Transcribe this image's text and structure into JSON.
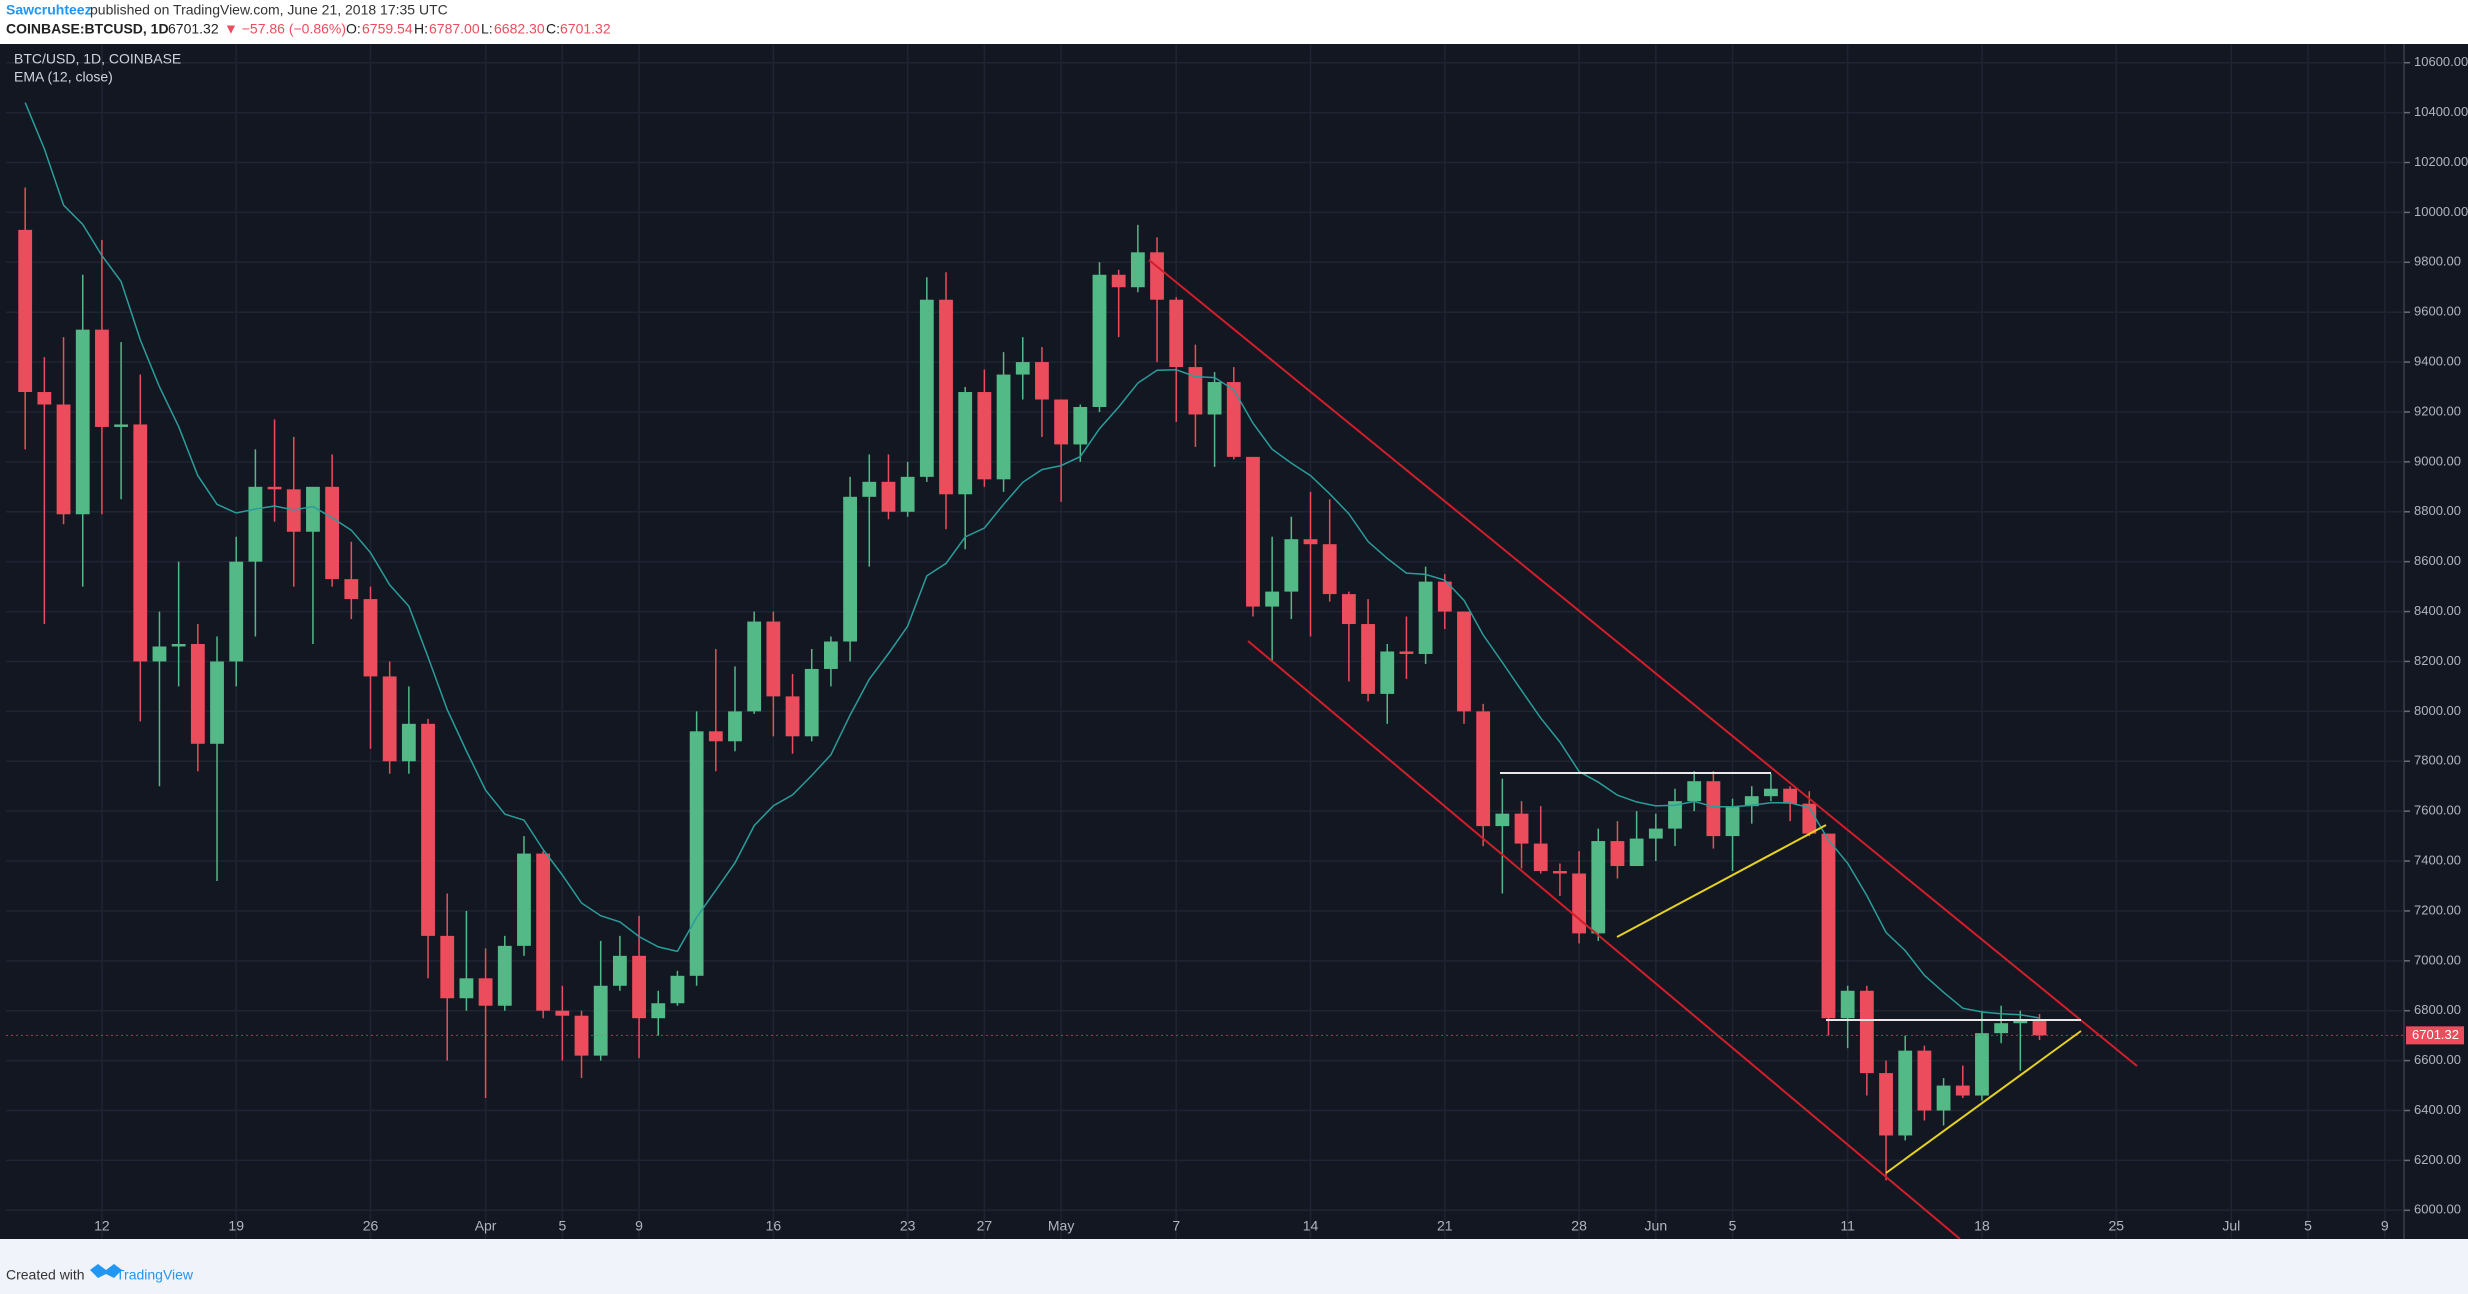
{
  "header": {
    "user": "Sawcruhteez",
    "published": "published on TradingView.com, June 21, 2018 17:35 UTC",
    "symbol": "COINBASE:BTCUSD, 1D",
    "last": "6701.32",
    "change": "▼ −57.86 (−0.86%)",
    "o_label": "O:",
    "o": "6759.54",
    "h_label": "H:",
    "h": "6787.00",
    "l_label": "L:",
    "l": "6682.30",
    "c_label": "C:",
    "c": "6701.32"
  },
  "footer": {
    "created": "Created with",
    "brand": "TradingView"
  },
  "chart_data": {
    "type": "candlestick",
    "title": "BTC/USD, 1D, COINBASE",
    "up_color": "#53b987",
    "down_color": "#eb4d5c",
    "x": [
      "03-08",
      "03-09",
      "03-10",
      "03-11",
      "03-12",
      "03-13",
      "03-14",
      "03-15",
      "03-16",
      "03-17",
      "03-18",
      "03-19",
      "03-20",
      "03-21",
      "03-22",
      "03-23",
      "03-24",
      "03-25",
      "03-26",
      "03-27",
      "03-28",
      "03-29",
      "03-30",
      "03-31",
      "04-01",
      "04-02",
      "04-03",
      "04-04",
      "04-05",
      "04-06",
      "04-07",
      "04-08",
      "04-09",
      "04-10",
      "04-11",
      "04-12",
      "04-13",
      "04-14",
      "04-15",
      "04-16",
      "04-17",
      "04-18",
      "04-19",
      "04-20",
      "04-21",
      "04-22",
      "04-23",
      "04-24",
      "04-25",
      "04-26",
      "04-27",
      "04-28",
      "04-29",
      "04-30",
      "05-01",
      "05-02",
      "05-03",
      "05-04",
      "05-05",
      "05-06",
      "05-07",
      "05-08",
      "05-09",
      "05-10",
      "05-11",
      "05-12",
      "05-13",
      "05-14",
      "05-15",
      "05-16",
      "05-17",
      "05-18",
      "05-19",
      "05-20",
      "05-21",
      "05-22",
      "05-23",
      "05-24",
      "05-25",
      "05-26",
      "05-27",
      "05-28",
      "05-29",
      "05-30",
      "05-31",
      "06-01",
      "06-02",
      "06-03",
      "06-04",
      "06-05",
      "06-06",
      "06-07",
      "06-08",
      "06-09",
      "06-10",
      "06-11",
      "06-12",
      "06-13",
      "06-14",
      "06-15",
      "06-16",
      "06-17",
      "06-18",
      "06-19",
      "06-20",
      "06-21"
    ],
    "open": [
      9930,
      9280,
      9230,
      8790,
      9530,
      9140,
      9150,
      8200,
      8260,
      8270,
      7870,
      8200,
      8600,
      8900,
      8890,
      8720,
      8900,
      8530,
      8450,
      8140,
      7800,
      7950,
      7100,
      6850,
      6930,
      6820,
      7060,
      7430,
      6800,
      6780,
      6620,
      6900,
      7020,
      6770,
      6830,
      6940,
      7920,
      7880,
      8000,
      8360,
      8060,
      7900,
      8170,
      8280,
      8860,
      8920,
      8800,
      8940,
      9650,
      8870,
      9280,
      8930,
      9350,
      9400,
      9250,
      9070,
      9220,
      9750,
      9700,
      9840,
      9650,
      9380,
      9190,
      9320,
      9020,
      8420,
      8480,
      8690,
      8670,
      8470,
      8350,
      8070,
      8240,
      8230,
      8520,
      8400,
      8000,
      7540,
      7590,
      7470,
      7360,
      7350,
      7110,
      7480,
      7380,
      7490,
      7530,
      7640,
      7720,
      7500,
      7620,
      7660,
      7690,
      7630,
      7510,
      6770,
      6880,
      6550,
      6300,
      6640,
      6400,
      6500,
      6460,
      6710,
      6750,
      6759.54
    ],
    "high": [
      10100,
      9420,
      9500,
      9750,
      9890,
      9480,
      9350,
      8400,
      8600,
      8350,
      8300,
      8700,
      9050,
      9170,
      9100,
      8900,
      9030,
      8680,
      8500,
      8200,
      8100,
      7970,
      7270,
      7200,
      7050,
      7100,
      7500,
      7440,
      6900,
      6800,
      7080,
      7100,
      7180,
      6880,
      6960,
      8000,
      8250,
      8180,
      8400,
      8400,
      8150,
      8250,
      8300,
      8940,
      9030,
      9030,
      9000,
      9740,
      9760,
      9300,
      9370,
      9440,
      9500,
      9460,
      9250,
      9230,
      9800,
      9770,
      9950,
      9900,
      9660,
      9470,
      9360,
      9380,
      9020,
      8700,
      8780,
      8880,
      8850,
      8480,
      8450,
      8270,
      8380,
      8580,
      8550,
      8400,
      8030,
      7730,
      7640,
      7620,
      7390,
      7440,
      7530,
      7560,
      7600,
      7590,
      7690,
      7760,
      7760,
      7650,
      7700,
      7750,
      7700,
      7680,
      7510,
      6900,
      6900,
      6600,
      6700,
      6660,
      6530,
      6580,
      6800,
      6820,
      6800,
      6787
    ],
    "low": [
      9050,
      8350,
      8750,
      8500,
      8790,
      8850,
      7960,
      7700,
      8100,
      7760,
      7320,
      8100,
      8300,
      8760,
      8500,
      8270,
      8500,
      8370,
      7850,
      7750,
      7750,
      6930,
      6600,
      6800,
      6450,
      6800,
      7020,
      6770,
      6600,
      6530,
      6600,
      6880,
      6610,
      6700,
      6820,
      6900,
      7760,
      7840,
      7990,
      7900,
      7830,
      7880,
      8100,
      8200,
      8580,
      8770,
      8780,
      8920,
      8730,
      8650,
      8900,
      8880,
      9250,
      9100,
      8840,
      9000,
      9200,
      9500,
      9680,
      9400,
      9160,
      9060,
      8980,
      9010,
      8380,
      8200,
      8370,
      8300,
      8440,
      8120,
      8040,
      7950,
      8130,
      8190,
      8330,
      7950,
      7460,
      7270,
      7370,
      7350,
      7260,
      7070,
      7080,
      7330,
      7380,
      7400,
      7460,
      7600,
      7450,
      7360,
      7550,
      7640,
      7560,
      7500,
      6700,
      6650,
      6460,
      6120,
      6280,
      6360,
      6340,
      6450,
      6440,
      6670,
      6560,
      6682.3
    ],
    "close": [
      9280,
      9230,
      8790,
      9530,
      9140,
      9150,
      8200,
      8260,
      8270,
      7870,
      8200,
      8600,
      8900,
      8890,
      8720,
      8900,
      8530,
      8450,
      8140,
      7800,
      7950,
      7100,
      6850,
      6930,
      6820,
      7060,
      7430,
      6800,
      6780,
      6620,
      6900,
      7020,
      6770,
      6830,
      6940,
      7920,
      7880,
      8000,
      8360,
      8060,
      7900,
      8170,
      8280,
      8860,
      8920,
      8800,
      8940,
      9650,
      8870,
      9280,
      8930,
      9350,
      9400,
      9250,
      9070,
      9220,
      9750,
      9700,
      9840,
      9650,
      9380,
      9190,
      9320,
      9020,
      8420,
      8480,
      8690,
      8670,
      8470,
      8350,
      8070,
      8240,
      8230,
      8520,
      8400,
      8000,
      7540,
      7590,
      7470,
      7360,
      7350,
      7110,
      7480,
      7380,
      7490,
      7530,
      7640,
      7720,
      7500,
      7620,
      7660,
      7690,
      7630,
      7510,
      6770,
      6880,
      6550,
      6300,
      6640,
      6400,
      6500,
      6460,
      6710,
      6750,
      6760,
      6701.32
    ],
    "series": [
      {
        "name": "EMA (12, close)",
        "color": "#2a9d9a",
        "values": [
          10440,
          10254,
          10029,
          9952,
          9827,
          9723,
          9489,
          9300,
          9141,
          8945,
          8830,
          8795,
          8811,
          8823,
          8807,
          8821,
          8776,
          8726,
          8636,
          8507,
          8421,
          8218,
          8007,
          7841,
          7684,
          7588,
          7564,
          7446,
          7344,
          7232,
          7181,
          7156,
          7097,
          7056,
          7038,
          7174,
          7283,
          7393,
          7542,
          7622,
          7665,
          7743,
          7826,
          7985,
          8129,
          8232,
          8341,
          8543,
          8593,
          8699,
          8735,
          8830,
          8918,
          8969,
          8985,
          9021,
          9133,
          9220,
          9316,
          9367,
          9369,
          9342,
          9338,
          9289,
          9155,
          9051,
          8995,
          8945,
          8872,
          8792,
          8681,
          8613,
          8554,
          8549,
          8526,
          8445,
          8306,
          8196,
          8084,
          7973,
          7877,
          7759,
          7716,
          7664,
          7637,
          7621,
          7624,
          7639,
          7618,
          7618,
          7624,
          7634,
          7633,
          7614,
          7484,
          7391,
          7262,
          7114,
          7041,
          6942,
          6874,
          6810,
          6795,
          6788,
          6784,
          6771
        ]
      }
    ],
    "xlim": [
      "03-07",
      "07-10"
    ],
    "xticks": [
      {
        "value": "03-12",
        "label": "12"
      },
      {
        "value": "03-19",
        "label": "19"
      },
      {
        "value": "03-26",
        "label": "26"
      },
      {
        "value": "04-01",
        "label": "Apr"
      },
      {
        "value": "04-05",
        "label": "5"
      },
      {
        "value": "04-09",
        "label": "9"
      },
      {
        "value": "04-16",
        "label": "16"
      },
      {
        "value": "04-23",
        "label": "23"
      },
      {
        "value": "04-27",
        "label": "27"
      },
      {
        "value": "05-01",
        "label": "May"
      },
      {
        "value": "05-07",
        "label": "7"
      },
      {
        "value": "05-14",
        "label": "14"
      },
      {
        "value": "05-21",
        "label": "21"
      },
      {
        "value": "05-28",
        "label": "28"
      },
      {
        "value": "06-01",
        "label": "Jun"
      },
      {
        "value": "06-05",
        "label": "5"
      },
      {
        "value": "06-11",
        "label": "11"
      },
      {
        "value": "06-18",
        "label": "18"
      },
      {
        "value": "06-25",
        "label": "25"
      },
      {
        "value": "07-01",
        "label": "Jul"
      },
      {
        "value": "07-05",
        "label": "5"
      },
      {
        "value": "07-09",
        "label": "9"
      }
    ],
    "ylim": [
      5885,
      10675
    ],
    "yticks": [
      {
        "value": 6000,
        "label": "6000.00"
      },
      {
        "value": 6200,
        "label": "6200.00"
      },
      {
        "value": 6400,
        "label": "6400.00"
      },
      {
        "value": 6600,
        "label": "6600.00"
      },
      {
        "value": 6800,
        "label": "6800.00"
      },
      {
        "value": 7000,
        "label": "7000.00"
      },
      {
        "value": 7200,
        "label": "7200.00"
      },
      {
        "value": 7400,
        "label": "7400.00"
      },
      {
        "value": 7600,
        "label": "7600.00"
      },
      {
        "value": 7800,
        "label": "7800.00"
      },
      {
        "value": 8000,
        "label": "8000.00"
      },
      {
        "value": 8200,
        "label": "8200.00"
      },
      {
        "value": 8400,
        "label": "8400.00"
      },
      {
        "value": 8600,
        "label": "8600.00"
      },
      {
        "value": 8800,
        "label": "8800.00"
      },
      {
        "value": 9000,
        "label": "9000.00"
      },
      {
        "value": 9200,
        "label": "9200.00"
      },
      {
        "value": 9400,
        "label": "9400.00"
      },
      {
        "value": 9600,
        "label": "9600.00"
      },
      {
        "value": 9800,
        "label": "9800.00"
      },
      {
        "value": 10000,
        "label": "10000.00"
      },
      {
        "value": 10200,
        "label": "10200.00"
      },
      {
        "value": 10400,
        "label": "10400.00"
      },
      {
        "value": 10600,
        "label": "10600.00"
      }
    ],
    "last_price": {
      "value": 6701.32,
      "label": "6701.32"
    },
    "grid": true
  }
}
